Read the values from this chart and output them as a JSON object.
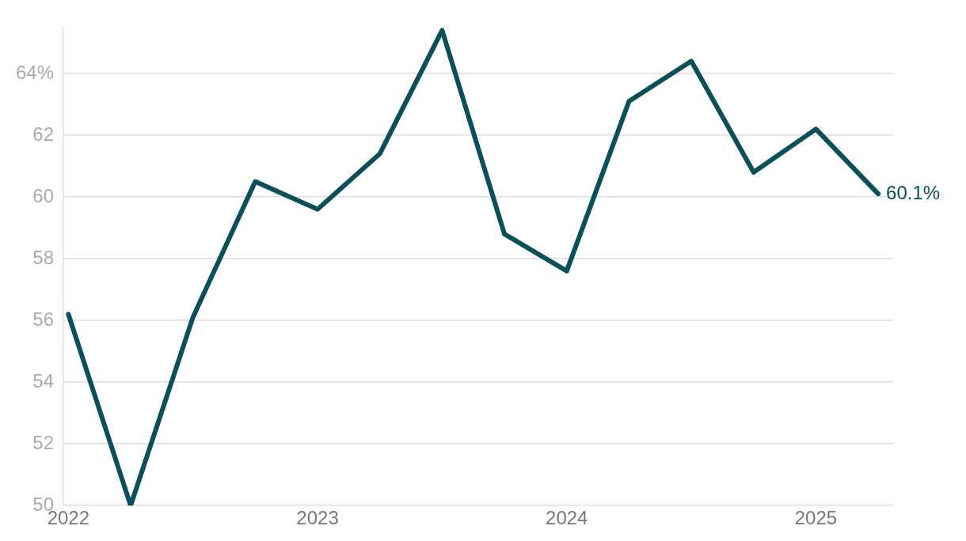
{
  "chart_data": {
    "type": "line",
    "x": [
      2022,
      2022.25,
      2022.5,
      2022.75,
      2023,
      2023.25,
      2023.5,
      2023.75,
      2024,
      2024.25,
      2024.5,
      2024.75,
      2025,
      2025.25
    ],
    "series": [
      {
        "color": "#0b4f5a",
        "values": [
          56.2,
          50.0,
          56.1,
          60.5,
          59.6,
          61.4,
          65.4,
          58.8,
          57.6,
          63.1,
          64.4,
          60.8,
          62.2,
          60.1
        ]
      }
    ],
    "xlim": [
      2021.98,
      2025.31
    ],
    "xticks": [
      2022,
      2023,
      2024,
      2025
    ],
    "ylim": [
      50,
      65.5
    ],
    "yticks": [
      50,
      52,
      54,
      56,
      58,
      60,
      62,
      {
        "value": 64,
        "label": "64%"
      }
    ],
    "grid": "y",
    "legend": false,
    "marker": "none",
    "line_style": "solid",
    "annotations": [
      {
        "text": "60.1%",
        "x": 2025.25,
        "y": 60.1
      }
    ]
  }
}
